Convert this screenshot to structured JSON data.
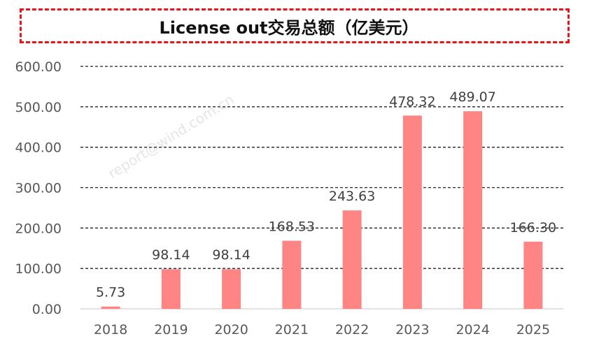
{
  "chart_data": {
    "type": "bar",
    "title": "License out交易总额（亿美元）",
    "categories": [
      "2018",
      "2019",
      "2020",
      "2021",
      "2022",
      "2023",
      "2024",
      "2025"
    ],
    "values": [
      5.73,
      98.14,
      98.14,
      168.53,
      243.63,
      478.32,
      489.07,
      166.3
    ],
    "data_labels": [
      "5.73",
      "98.14",
      "98.14",
      "168.53",
      "243.63",
      "478.32",
      "489.07",
      "166.30"
    ],
    "y_ticks": [
      "0.00",
      "100.00",
      "200.00",
      "300.00",
      "400.00",
      "500.00",
      "600.00"
    ],
    "ylim": [
      0,
      600
    ],
    "xlabel": "",
    "ylabel": "",
    "grid": true,
    "legend": "none",
    "bar_color": "#ff8585",
    "title_border_color": "#e8141b"
  },
  "watermark": "report@wind.com.cn"
}
